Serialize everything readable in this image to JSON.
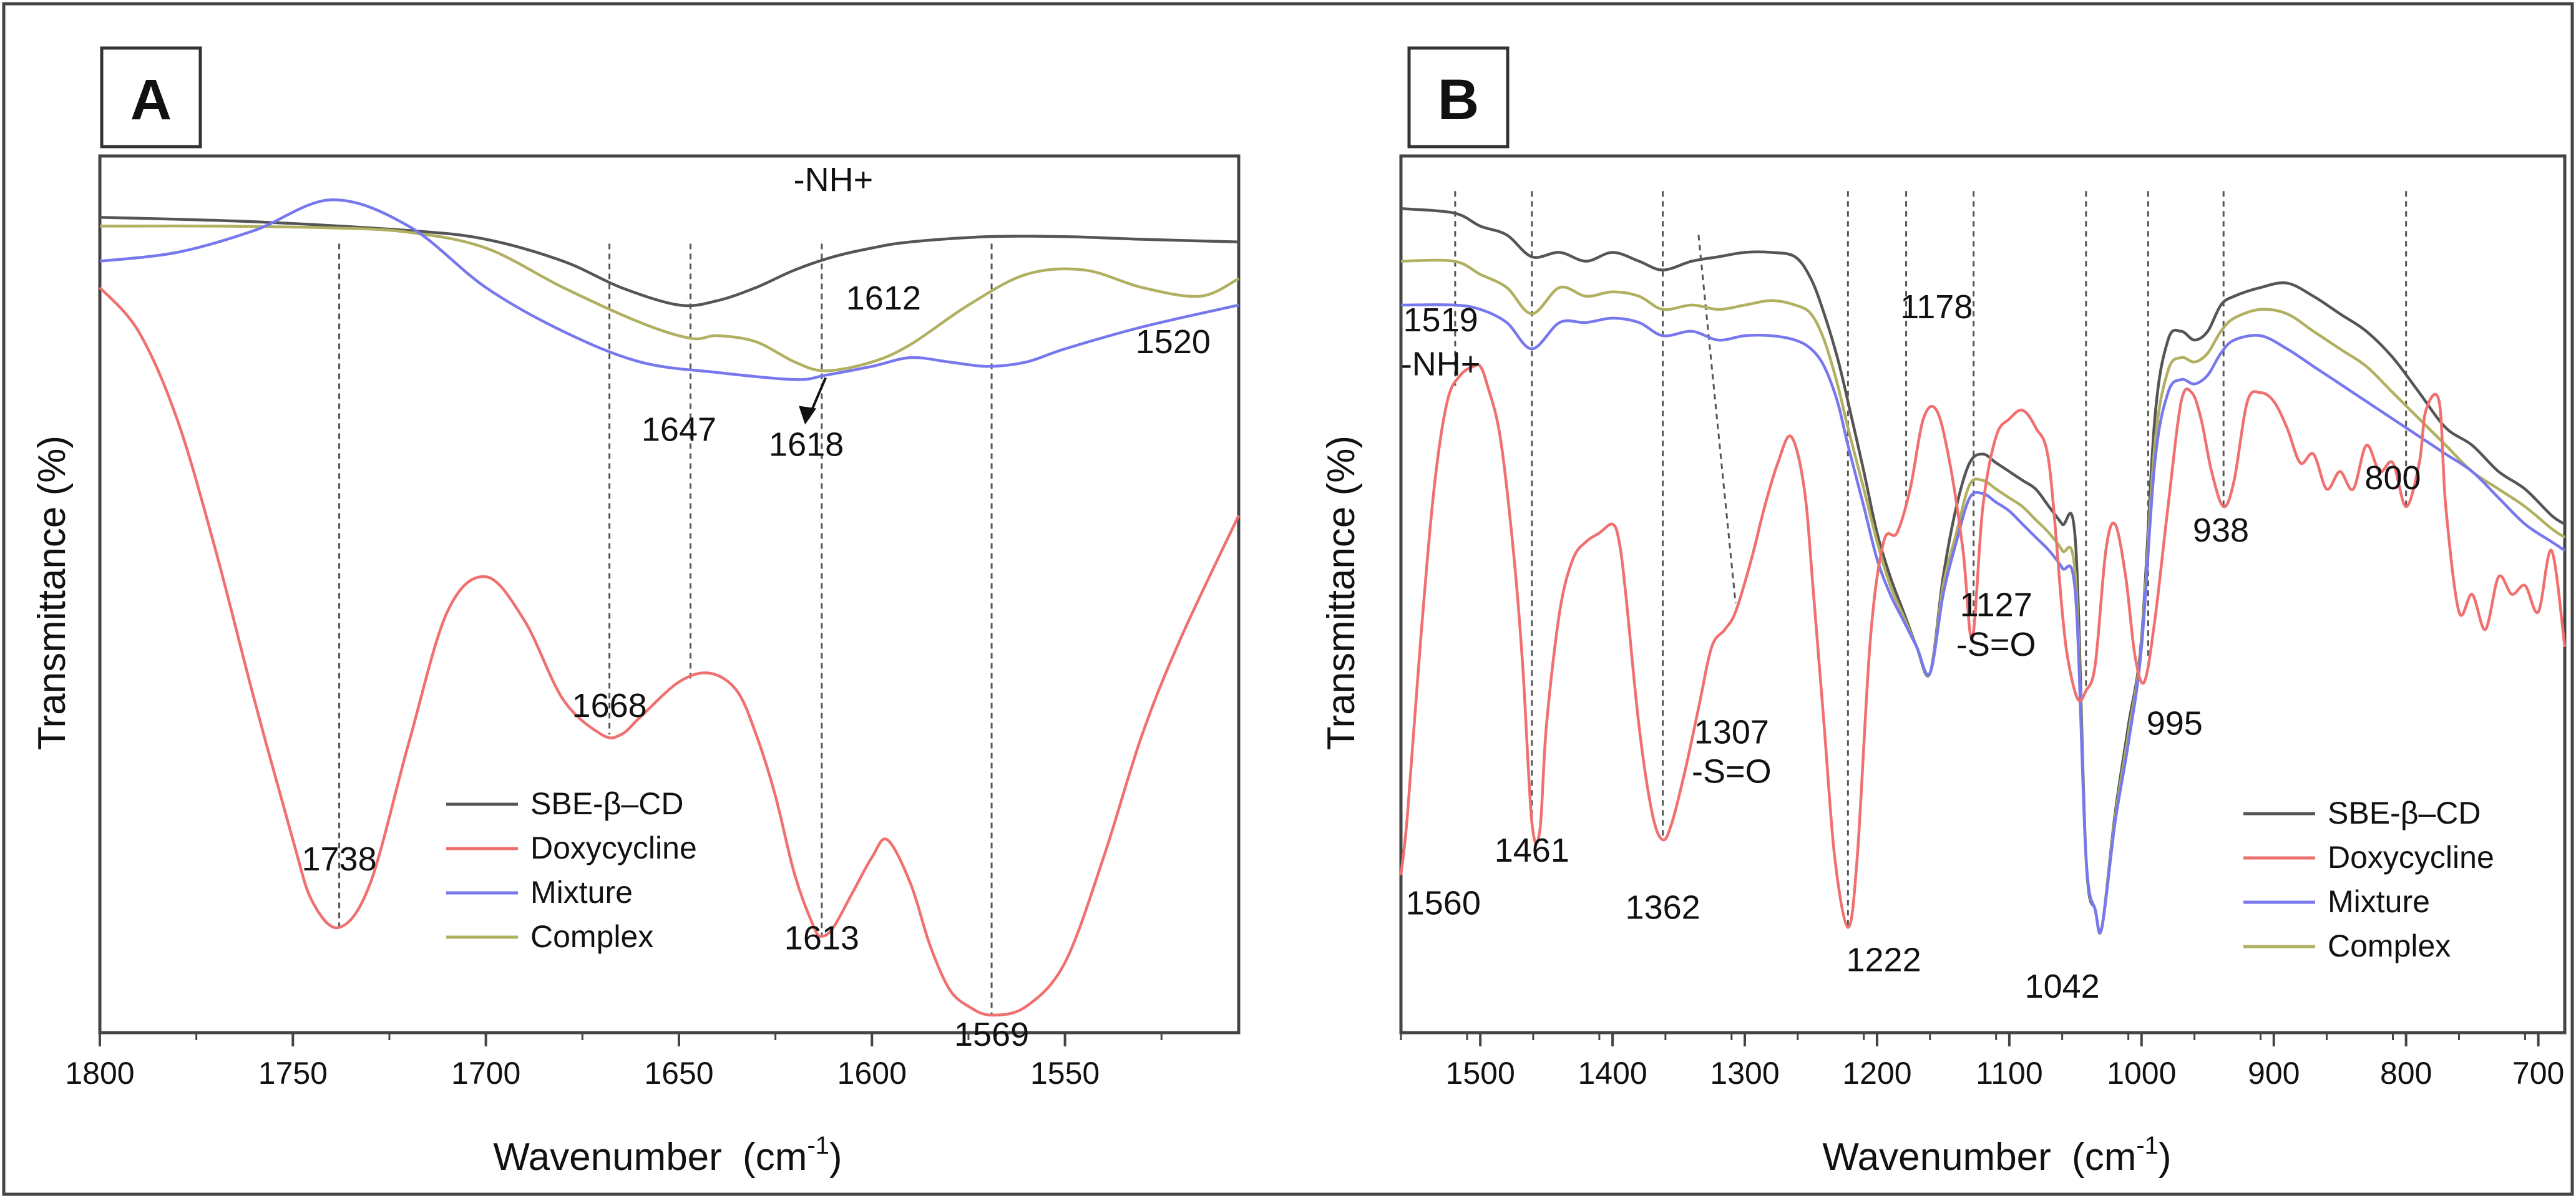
{
  "figure": {
    "panels": [
      {
        "label": "A"
      },
      {
        "label": "B"
      }
    ]
  },
  "colors": {
    "sbe": "#555555",
    "doxy": "#f07070",
    "mixture": "#7777ee",
    "complex": "#b0b060",
    "frame": "#444444",
    "guide": "#555555"
  },
  "chart_data": [
    {
      "type": "line",
      "panel": "A",
      "xlabel": "Wavenumber",
      "xlabel_unit": "(cm",
      "xlabel_sup": "-1",
      "xlabel_close": ")",
      "ylabel": "Transmittance (%)",
      "xlim": [
        1800,
        1505
      ],
      "xticks": [
        1800,
        1750,
        1700,
        1650,
        1600,
        1550
      ],
      "ylim": [
        0,
        100
      ],
      "legend_position": "bottom-center",
      "series": [
        {
          "name": "SBE-β–CD",
          "color_key": "sbe",
          "x": [
            1800,
            1760,
            1720,
            1700,
            1680,
            1665,
            1650,
            1640,
            1630,
            1620,
            1610,
            1600,
            1590,
            1570,
            1550,
            1530,
            1505
          ],
          "y": [
            93,
            92.5,
            91.5,
            90.5,
            88,
            85,
            83,
            83.5,
            85,
            87,
            88.5,
            89.5,
            90.2,
            90.8,
            90.8,
            90.5,
            90.2
          ]
        },
        {
          "name": "Doxycycline",
          "color_key": "doxy",
          "x": [
            1800,
            1790,
            1780,
            1770,
            1760,
            1750,
            1745,
            1738,
            1730,
            1720,
            1710,
            1700,
            1690,
            1680,
            1670,
            1665,
            1660,
            1650,
            1642,
            1635,
            1630,
            1625,
            1620,
            1615,
            1613,
            1610,
            1605,
            1600,
            1596,
            1590,
            1585,
            1580,
            1575,
            1569,
            1560,
            1550,
            1540,
            1530,
            1520,
            1505
          ],
          "y": [
            85,
            80,
            70,
            55,
            38,
            22,
            15,
            12,
            17,
            33,
            48,
            52,
            47,
            38,
            34,
            34,
            36,
            40,
            41,
            39,
            34,
            27,
            18,
            12,
            11,
            12,
            16,
            20,
            22,
            17,
            10,
            5,
            3,
            2,
            3,
            8,
            20,
            34,
            45,
            59
          ]
        },
        {
          "name": "Mixture",
          "color_key": "mixture",
          "x": [
            1800,
            1780,
            1760,
            1740,
            1720,
            1700,
            1680,
            1660,
            1640,
            1620,
            1612,
            1600,
            1590,
            1580,
            1570,
            1560,
            1550,
            1530,
            1505
          ],
          "y": [
            88,
            89,
            91.5,
            95,
            92,
            85,
            80,
            76.5,
            75.3,
            74.5,
            75,
            76,
            77,
            76.5,
            76,
            76.5,
            78,
            80.5,
            83
          ]
        },
        {
          "name": "Complex",
          "color_key": "complex",
          "x": [
            1800,
            1770,
            1740,
            1720,
            1700,
            1680,
            1660,
            1647,
            1640,
            1630,
            1620,
            1612,
            1600,
            1590,
            1575,
            1560,
            1545,
            1530,
            1515,
            1505
          ],
          "y": [
            92,
            92,
            91.8,
            91.3,
            89.5,
            85,
            81,
            79.2,
            79.5,
            78.8,
            76.5,
            75.5,
            76.5,
            78.5,
            83,
            86.5,
            87,
            85,
            84,
            86
          ]
        }
      ],
      "annotations": [
        {
          "text": "-NH+",
          "x": 1610,
          "y": 96
        },
        {
          "text": "1612",
          "x": 1597,
          "y": 82.5
        },
        {
          "text": "1520",
          "x": 1522,
          "y": 77.5
        },
        {
          "text": "1647",
          "x": 1650,
          "y": 67.5
        },
        {
          "text": "1618",
          "x": 1617,
          "y": 65.8
        },
        {
          "text": "1668",
          "x": 1668,
          "y": 36
        },
        {
          "text": "1738",
          "x": 1738,
          "y": 18.5
        },
        {
          "text": "1613",
          "x": 1613,
          "y": 9.5
        },
        {
          "text": "1569",
          "x": 1569,
          "y": -1.5
        }
      ],
      "guides": [
        1738,
        1668,
        1647,
        1613,
        1569
      ]
    },
    {
      "type": "line",
      "panel": "B",
      "xlabel": "Wavenumber",
      "xlabel_unit": "(cm",
      "xlabel_sup": "-1",
      "xlabel_close": ")",
      "ylabel": "Transmittance (%)",
      "xlim": [
        1560,
        680
      ],
      "xticks": [
        1500,
        1400,
        1300,
        1200,
        1100,
        1000,
        900,
        800,
        700
      ],
      "ylim": [
        0,
        100
      ],
      "legend_position": "bottom-right",
      "series": [
        {
          "name": "SBE-β–CD",
          "color_key": "sbe",
          "x": [
            1560,
            1520,
            1500,
            1480,
            1461,
            1440,
            1420,
            1400,
            1380,
            1362,
            1340,
            1320,
            1300,
            1280,
            1262,
            1250,
            1240,
            1230,
            1222,
            1210,
            1200,
            1190,
            1180,
            1170,
            1160,
            1150,
            1140,
            1130,
            1120,
            1110,
            1100,
            1090,
            1080,
            1070,
            1060,
            1050,
            1042,
            1035,
            1030,
            1020,
            1010,
            1000,
            990,
            980,
            970,
            960,
            950,
            940,
            930,
            910,
            890,
            870,
            850,
            830,
            810,
            790,
            770,
            750,
            730,
            710,
            690,
            680
          ],
          "y": [
            94,
            93.5,
            92,
            91,
            88.5,
            89,
            88,
            89,
            88,
            87,
            88,
            88.5,
            89,
            89,
            88.5,
            86,
            82,
            77,
            72,
            64,
            57,
            52,
            48,
            44,
            41,
            52,
            60,
            65,
            66,
            65,
            64,
            63,
            62,
            60,
            58,
            56,
            20,
            14,
            12,
            25,
            35,
            45,
            70,
            79,
            80,
            79,
            80,
            83,
            84,
            85,
            85.5,
            84,
            82,
            80,
            77,
            73,
            69,
            67,
            64,
            62,
            59,
            58
          ]
        },
        {
          "name": "Doxycycline",
          "color_key": "doxy",
          "x": [
            1560,
            1555,
            1545,
            1535,
            1525,
            1515,
            1505,
            1500,
            1495,
            1485,
            1475,
            1468,
            1461,
            1455,
            1450,
            1440,
            1430,
            1420,
            1410,
            1400,
            1395,
            1390,
            1380,
            1370,
            1362,
            1355,
            1345,
            1335,
            1325,
            1315,
            1307,
            1295,
            1285,
            1275,
            1265,
            1255,
            1248,
            1240,
            1232,
            1222,
            1215,
            1205,
            1195,
            1185,
            1175,
            1165,
            1155,
            1145,
            1135,
            1128,
            1120,
            1110,
            1100,
            1090,
            1080,
            1070,
            1060,
            1055,
            1048,
            1042,
            1035,
            1027,
            1020,
            1012,
            1005,
            998,
            990,
            980,
            970,
            962,
            955,
            947,
            938,
            930,
            920,
            910,
            900,
            890,
            880,
            870,
            860,
            850,
            840,
            830,
            820,
            810,
            800,
            790,
            785,
            775,
            770,
            760,
            750,
            740,
            730,
            720,
            710,
            700,
            690,
            680
          ],
          "y": [
            18,
            25,
            45,
            62,
            72,
            75,
            76,
            76,
            74,
            68,
            55,
            42,
            24,
            23,
            35,
            48,
            54,
            56,
            57,
            58,
            56,
            50,
            35,
            25,
            22,
            24,
            30,
            37,
            44,
            46,
            48,
            54,
            60,
            65,
            68,
            62,
            50,
            35,
            20,
            12,
            20,
            45,
            56,
            57,
            62,
            70,
            71,
            65,
            55,
            45,
            60,
            68,
            70,
            71,
            69,
            65,
            48,
            42,
            38,
            39,
            42,
            55,
            58,
            52,
            43,
            40,
            47,
            60,
            72,
            73,
            70,
            64,
            60,
            63,
            72,
            73,
            72,
            69,
            65,
            66,
            62,
            64,
            62,
            67,
            64,
            65,
            60,
            65,
            71,
            72,
            60,
            48,
            50,
            46,
            52,
            50,
            51,
            48,
            55,
            44
          ]
        },
        {
          "name": "Mixture",
          "color_key": "mixture",
          "x": [
            1560,
            1520,
            1500,
            1480,
            1461,
            1440,
            1420,
            1400,
            1380,
            1362,
            1340,
            1320,
            1300,
            1280,
            1262,
            1250,
            1240,
            1230,
            1222,
            1210,
            1200,
            1190,
            1180,
            1170,
            1160,
            1150,
            1140,
            1130,
            1120,
            1110,
            1100,
            1090,
            1080,
            1070,
            1060,
            1050,
            1042,
            1035,
            1030,
            1020,
            1010,
            1000,
            990,
            980,
            970,
            960,
            950,
            940,
            930,
            910,
            890,
            870,
            850,
            830,
            810,
            790,
            770,
            750,
            730,
            710,
            690,
            680
          ],
          "y": [
            83,
            83,
            82.5,
            81,
            78,
            81,
            81,
            81.5,
            81,
            79.5,
            80,
            79,
            79.5,
            79.5,
            79,
            78,
            76,
            72,
            67,
            60,
            54,
            50,
            47,
            44,
            41,
            50,
            56,
            61,
            61.5,
            60.5,
            59.5,
            58,
            56.5,
            55,
            53,
            50,
            20,
            14,
            12,
            24,
            33,
            44,
            65,
            73,
            74.5,
            74,
            75,
            77.5,
            79,
            79.5,
            78,
            76,
            74,
            72,
            70,
            68,
            66,
            64,
            61,
            58,
            56,
            55
          ]
        },
        {
          "name": "Complex",
          "color_key": "complex",
          "x": [
            1560,
            1520,
            1500,
            1480,
            1461,
            1440,
            1420,
            1400,
            1380,
            1362,
            1340,
            1320,
            1300,
            1280,
            1262,
            1250,
            1240,
            1230,
            1222,
            1210,
            1200,
            1190,
            1180,
            1170,
            1160,
            1150,
            1140,
            1130,
            1120,
            1110,
            1100,
            1090,
            1080,
            1070,
            1060,
            1050,
            1042,
            1035,
            1030,
            1020,
            1010,
            1000,
            990,
            980,
            970,
            960,
            950,
            940,
            930,
            910,
            890,
            870,
            850,
            830,
            810,
            790,
            770,
            750,
            730,
            710,
            690,
            680
          ],
          "y": [
            88,
            88,
            86.5,
            85,
            82,
            85,
            84,
            84.5,
            84,
            82.5,
            83,
            82.5,
            83,
            83.5,
            83,
            82,
            79,
            74,
            69,
            62,
            56,
            51,
            47.5,
            44,
            41,
            51,
            57,
            62.5,
            63,
            62,
            61,
            60,
            58.5,
            57,
            55,
            52,
            20,
            14,
            12,
            24.5,
            34,
            44.5,
            67,
            75.5,
            77,
            76.5,
            77.5,
            80,
            81.5,
            82.5,
            82,
            80,
            78,
            76,
            73,
            70,
            67,
            64,
            62,
            60,
            57.5,
            56.5
          ]
        }
      ],
      "annotations": [
        {
          "text": "1519",
          "x": 1530,
          "y": 80
        },
        {
          "text": "-NH+",
          "x": 1530,
          "y": 75
        },
        {
          "text": "1178",
          "x": 1155,
          "y": 81.5
        },
        {
          "text": "938",
          "x": 940,
          "y": 56
        },
        {
          "text": "800",
          "x": 810,
          "y": 62
        },
        {
          "text": "1127",
          "x": 1110,
          "y": 47.5
        },
        {
          "text": "-S=O",
          "x": 1110,
          "y": 43
        },
        {
          "text": "995",
          "x": 975,
          "y": 34
        },
        {
          "text": "1307",
          "x": 1310,
          "y": 33
        },
        {
          "text": "-S=O",
          "x": 1310,
          "y": 28.5
        },
        {
          "text": "1461",
          "x": 1461,
          "y": 19.5
        },
        {
          "text": "1560",
          "x": 1528,
          "y": 13.5
        },
        {
          "text": "1362",
          "x": 1362,
          "y": 13
        },
        {
          "text": "1222",
          "x": 1195,
          "y": 7
        },
        {
          "text": "1042",
          "x": 1060,
          "y": 4
        }
      ],
      "guides": [
        1519,
        1461,
        1362,
        1222,
        1178,
        1127,
        1042,
        995,
        938,
        800
      ],
      "slanted_guide": {
        "from": [
          1335,
          91
        ],
        "to": [
          1307,
          49
        ]
      }
    }
  ]
}
